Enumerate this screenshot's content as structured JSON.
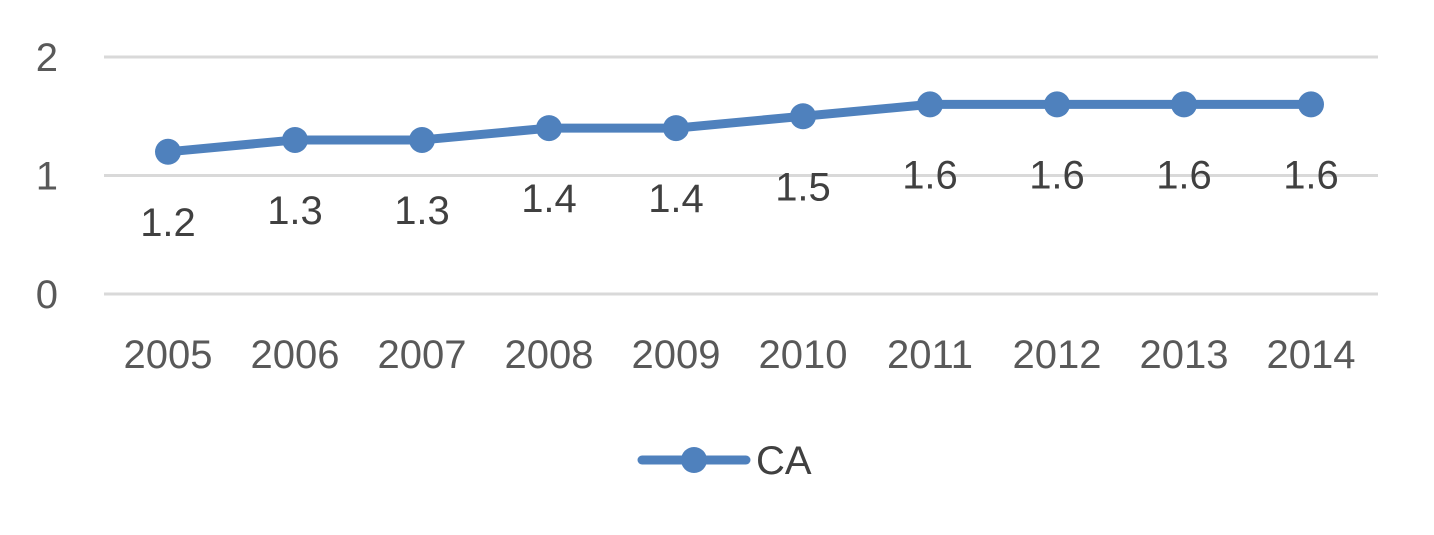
{
  "chart_data": {
    "type": "line",
    "categories": [
      "2005",
      "2006",
      "2007",
      "2008",
      "2009",
      "2010",
      "2011",
      "2012",
      "2013",
      "2014"
    ],
    "series": [
      {
        "name": "CA",
        "values": [
          1.2,
          1.3,
          1.3,
          1.4,
          1.4,
          1.5,
          1.6,
          1.6,
          1.6,
          1.6
        ]
      }
    ],
    "data_labels": [
      "1.2",
      "1.3",
      "1.3",
      "1.4",
      "1.4",
      "1.5",
      "1.6",
      "1.6",
      "1.6",
      "1.6"
    ],
    "y_ticks": [
      "0",
      "1",
      "2"
    ],
    "ylim": [
      0,
      2
    ],
    "grid": true,
    "legend_position": "bottom",
    "series_color": "#4f81bd",
    "title": "",
    "xlabel": "",
    "ylabel": ""
  }
}
